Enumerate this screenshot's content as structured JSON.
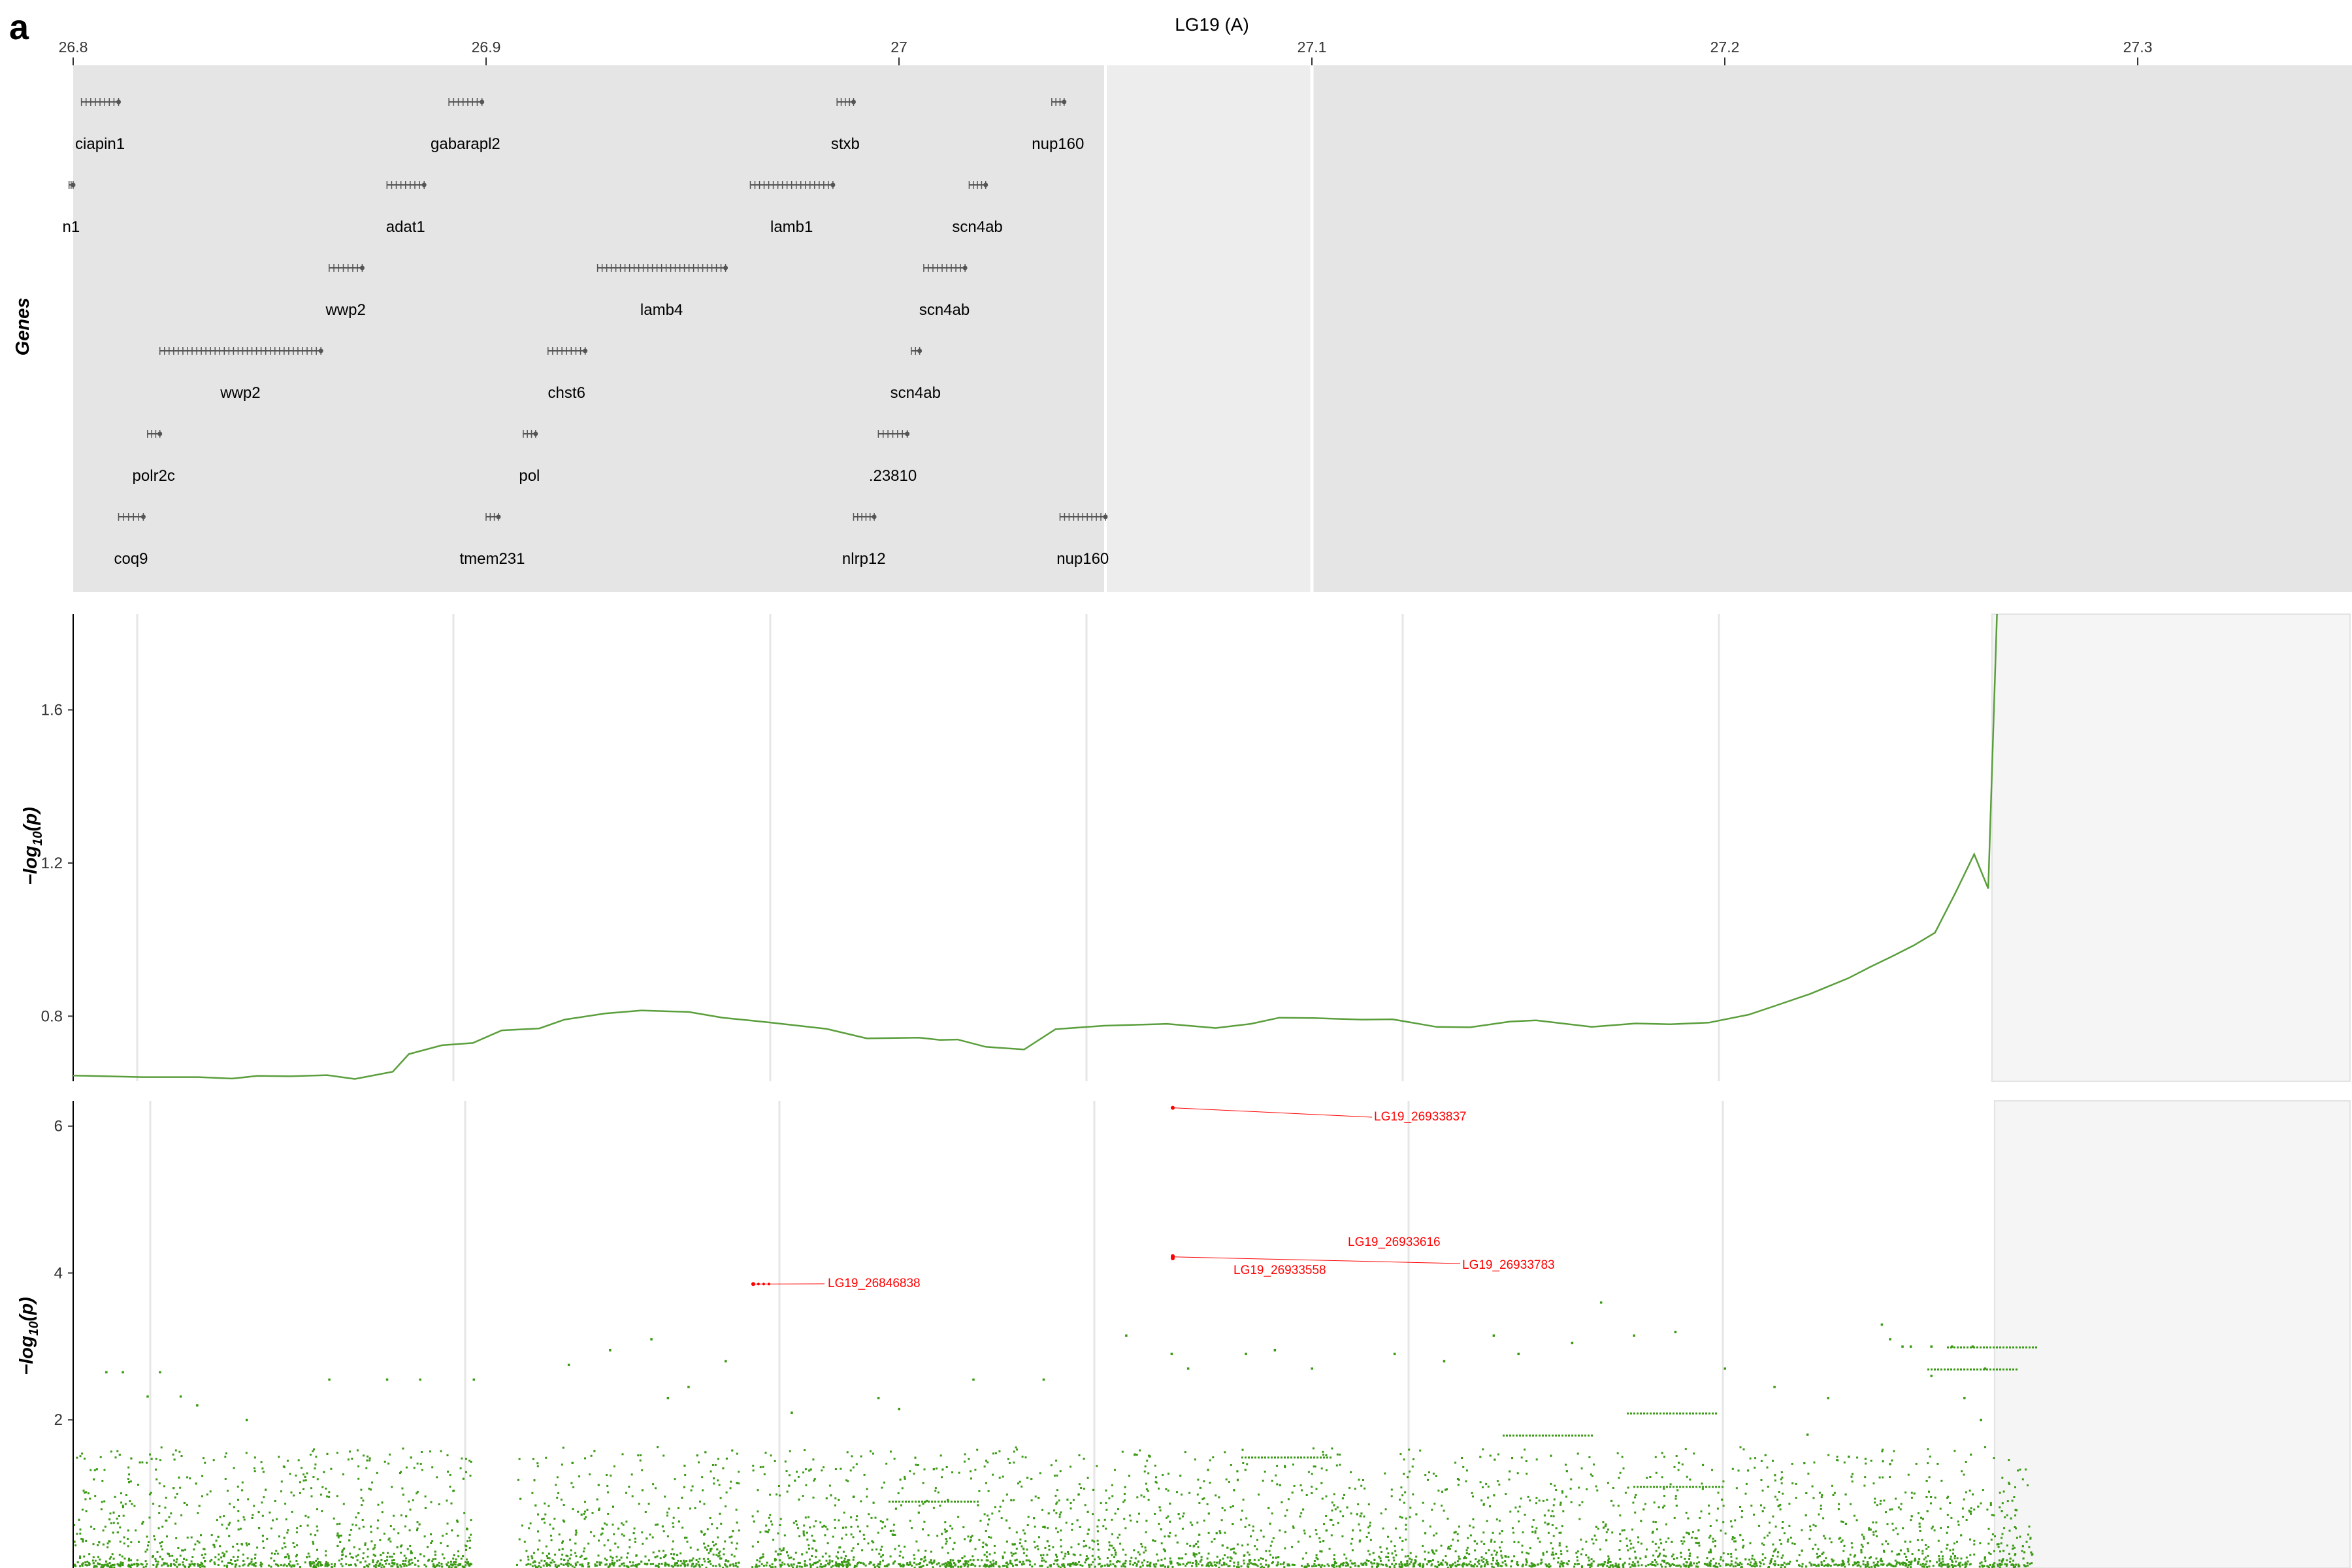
{
  "figure": {
    "panel_letter": "a",
    "gene_track_label": "Genes",
    "y_axis_label_prefix": "−log",
    "y_axis_label_sub": "10",
    "y_axis_label_suffix": "(p)"
  },
  "colors": {
    "track_background": "#e5e5e5",
    "track_highlight": "#ededed",
    "line_color": "#5a9e3c",
    "point_color": "#3a9a14",
    "lead_snp_color": "#ff0000",
    "gene_color": "#555555",
    "masked_region": "#f5f5f5"
  },
  "chart_data": [
    {
      "type": "gene-track",
      "title": "LG19 (A)",
      "xlim": [
        26.8,
        27.35
      ],
      "x_ticks": [
        "26.8",
        "26.9",
        "27",
        "27.1",
        "27.2",
        "27.3"
      ],
      "highlight_region": [
        27.05,
        27.1
      ],
      "genes": [
        {
          "name": "ciapin1",
          "start": 26.802,
          "end": 26.811,
          "row": 0
        },
        {
          "name": "gabarapl2",
          "start": 26.891,
          "end": 26.899,
          "row": 0
        },
        {
          "name": "stxb",
          "start": 26.985,
          "end": 26.989,
          "row": 0
        },
        {
          "name": "nup160",
          "start": 27.037,
          "end": 27.04,
          "row": 0
        },
        {
          "name": "n1",
          "start": 26.799,
          "end": 26.8,
          "row": 1
        },
        {
          "name": "adat1",
          "start": 26.876,
          "end": 26.885,
          "row": 1
        },
        {
          "name": "lamb1",
          "start": 26.964,
          "end": 26.984,
          "row": 1
        },
        {
          "name": "scn4ab",
          "start": 27.017,
          "end": 27.021,
          "row": 1
        },
        {
          "name": "wwp2",
          "start": 26.862,
          "end": 26.87,
          "row": 2
        },
        {
          "name": "lamb4",
          "start": 26.927,
          "end": 26.958,
          "row": 2
        },
        {
          "name": "scn4ab",
          "start": 27.006,
          "end": 27.016,
          "row": 2
        },
        {
          "name": "wwp2",
          "start": 26.821,
          "end": 26.86,
          "row": 3
        },
        {
          "name": "chst6",
          "start": 26.915,
          "end": 26.924,
          "row": 3
        },
        {
          "name": "scn4ab",
          "start": 27.003,
          "end": 27.005,
          "row": 3
        },
        {
          "name": "polr2c",
          "start": 26.818,
          "end": 26.821,
          "row": 4
        },
        {
          "name": "pol",
          "start": 26.909,
          "end": 26.912,
          "row": 4
        },
        {
          "name": ".23810",
          "start": 26.995,
          "end": 27.002,
          "row": 4
        },
        {
          "name": "coq9",
          "start": 26.811,
          "end": 26.817,
          "row": 5
        },
        {
          "name": "tmem231",
          "start": 26.9,
          "end": 26.903,
          "row": 5
        },
        {
          "name": "nlrp12",
          "start": 26.989,
          "end": 26.994,
          "row": 5
        },
        {
          "name": "nup160",
          "start": 27.039,
          "end": 27.05,
          "row": 5
        }
      ]
    },
    {
      "type": "line",
      "ylabel": "−log10(p)",
      "ylim": [
        0.63,
        1.85
      ],
      "y_ticks": [
        0.8,
        1.2,
        1.6
      ],
      "xlim": [
        26.8,
        27.35
      ],
      "masked_from": 27.2647,
      "x": [
        26.8,
        26.8167,
        26.8303,
        26.8385,
        26.8446,
        26.8526,
        26.8615,
        26.8682,
        26.8774,
        26.8813,
        26.8893,
        26.8968,
        26.9038,
        26.9129,
        26.919,
        26.9288,
        26.9376,
        26.9491,
        26.9573,
        26.9683,
        26.9824,
        26.9922,
        27.0049,
        27.0099,
        27.0142,
        27.021,
        27.0303,
        27.0379,
        27.0496,
        27.0649,
        27.0767,
        27.0852,
        27.0921,
        27.1005,
        27.1121,
        27.1195,
        27.1302,
        27.1383,
        27.148,
        27.1543,
        27.1678,
        27.1784,
        27.1868,
        27.1961,
        27.2058,
        27.2122,
        27.2206,
        27.2299,
        27.2353,
        27.2405,
        27.2458,
        27.2509,
        27.2558,
        27.2604,
        27.2638,
        27.2668
      ],
      "y": [
        0.645,
        0.641,
        0.641,
        0.637,
        0.644,
        0.643,
        0.646,
        0.636,
        0.655,
        0.701,
        0.724,
        0.73,
        0.763,
        0.768,
        0.791,
        0.807,
        0.815,
        0.811,
        0.796,
        0.784,
        0.767,
        0.742,
        0.744,
        0.738,
        0.739,
        0.72,
        0.713,
        0.766,
        0.775,
        0.78,
        0.769,
        0.78,
        0.796,
        0.795,
        0.791,
        0.792,
        0.772,
        0.771,
        0.786,
        0.789,
        0.772,
        0.781,
        0.779,
        0.783,
        0.804,
        0.827,
        0.858,
        0.899,
        0.929,
        0.956,
        0.985,
        1.018,
        1.121,
        1.223,
        1.133,
        2.15
      ]
    },
    {
      "type": "scatter",
      "ylabel": "−log10(p)",
      "ylim": [
        0,
        6.3
      ],
      "y_ticks": [
        2,
        4,
        6
      ],
      "xlim": [
        26.8,
        27.35
      ],
      "masked_from": 27.2647,
      "series": [
        {
          "points": [
            [
              26.808,
              2.65
            ],
            [
              26.812,
              2.65
            ],
            [
              26.818,
              2.32
            ],
            [
              26.821,
              2.65
            ],
            [
              26.826,
              2.32
            ],
            [
              26.83,
              2.2
            ],
            [
              26.842,
              2.0
            ],
            [
              26.862,
              2.55
            ],
            [
              26.876,
              2.55
            ],
            [
              26.884,
              2.55
            ],
            [
              26.897,
              2.55
            ],
            [
              26.92,
              2.75
            ],
            [
              26.93,
              2.95
            ],
            [
              26.94,
              3.1
            ],
            [
              26.944,
              2.3
            ],
            [
              26.949,
              2.45
            ],
            [
              26.958,
              2.8
            ],
            [
              26.974,
              2.1
            ],
            [
              26.995,
              2.3
            ],
            [
              27.0,
              2.15
            ],
            [
              27.018,
              2.55
            ],
            [
              27.035,
              2.55
            ],
            [
              27.055,
              3.15
            ],
            [
              27.066,
              2.9
            ],
            [
              27.07,
              2.7
            ],
            [
              27.084,
              2.9
            ],
            [
              27.091,
              2.95
            ],
            [
              27.1,
              2.7
            ],
            [
              27.12,
              2.9
            ],
            [
              27.132,
              2.8
            ],
            [
              27.144,
              3.15
            ],
            [
              27.15,
              2.9
            ],
            [
              27.163,
              3.05
            ],
            [
              27.17,
              3.6
            ],
            [
              27.178,
              3.15
            ],
            [
              27.188,
              3.2
            ],
            [
              27.2,
              2.7
            ],
            [
              27.212,
              2.45
            ],
            [
              27.225,
              2.3
            ],
            [
              27.238,
              3.3
            ],
            [
              27.24,
              3.1
            ],
            [
              27.243,
              3.0
            ],
            [
              27.245,
              3.0
            ],
            [
              27.25,
              3.0
            ],
            [
              27.255,
              3.0
            ],
            [
              27.26,
              3.0
            ],
            [
              27.263,
              2.7
            ],
            [
              27.25,
              2.6
            ],
            [
              27.258,
              2.3
            ],
            [
              27.262,
              2.0
            ],
            [
              27.23,
              1.5
            ],
            [
              27.24,
              1.4
            ],
            [
              27.22,
              1.8
            ]
          ]
        },
        {
          "lead_snps": [
            {
              "label": "LG19_26846838",
              "x": 26.9647,
              "y": 3.85
            },
            {
              "label": "LG19_26933837",
              "x": 27.0663,
              "y": 6.25
            },
            {
              "label": "LG19_26933616",
              "x": 27.0663,
              "y": 4.23
            },
            {
              "label": "LG19_26933558",
              "x": 27.0663,
              "y": 4.2
            },
            {
              "label": "LG19_26933783",
              "x": 27.0663,
              "y": 4.22
            }
          ]
        }
      ]
    }
  ]
}
